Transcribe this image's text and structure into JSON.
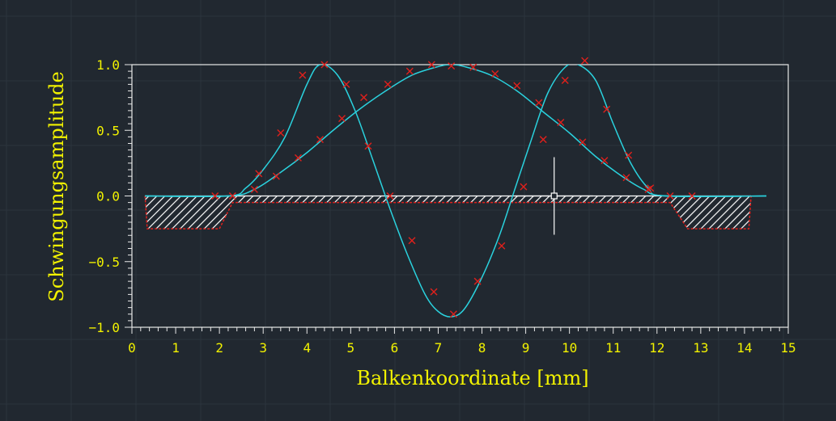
{
  "chart_data": {
    "type": "line",
    "xlabel": "Balkenkoordinate [mm]",
    "ylabel": "Schwingungsamplitude",
    "xlim": [
      0,
      15
    ],
    "ylim": [
      -1.0,
      1.0
    ],
    "x_ticks": [
      "0",
      "1",
      "2",
      "3",
      "4",
      "5",
      "6",
      "7",
      "8",
      "9",
      "10",
      "11",
      "12",
      "13",
      "14",
      "15"
    ],
    "y_ticks": [
      {
        "value": 1.0,
        "label": "1.0"
      },
      {
        "value": 0.5,
        "label": "0.5"
      },
      {
        "value": 0.0,
        "label": "0.0"
      },
      {
        "value": -0.5,
        "label": "−0.5"
      },
      {
        "value": -1.0,
        "label": "−1.0"
      }
    ],
    "curve_color": "#2ad2de",
    "marker_color": "#e0201c",
    "beam_color": "#e0201c",
    "grid": false,
    "beam_profile": [
      [
        0.3,
        0
      ],
      [
        0.35,
        -0.25
      ],
      [
        2.0,
        -0.25
      ],
      [
        2.3,
        -0.05
      ],
      [
        12.3,
        -0.05
      ],
      [
        12.7,
        -0.25
      ],
      [
        14.1,
        -0.25
      ],
      [
        14.15,
        0
      ]
    ],
    "beam_extent": [
      0.3,
      14.15
    ],
    "cursor": {
      "x": 9.65,
      "y": 0.0
    },
    "series": [
      {
        "kind": "mode_curve",
        "anchors": [
          [
            0.3,
            0
          ],
          [
            2.2,
            0
          ],
          [
            2.6,
            0.06
          ],
          [
            3.0,
            0.2
          ],
          [
            3.5,
            0.45
          ],
          [
            4.0,
            0.85
          ],
          [
            4.3,
            1.0
          ],
          [
            4.7,
            0.92
          ],
          [
            5.1,
            0.65
          ],
          [
            5.5,
            0.28
          ],
          [
            5.9,
            -0.1
          ],
          [
            6.3,
            -0.45
          ],
          [
            6.7,
            -0.75
          ],
          [
            7.0,
            -0.88
          ],
          [
            7.3,
            -0.92
          ],
          [
            7.6,
            -0.86
          ],
          [
            8.0,
            -0.62
          ],
          [
            8.4,
            -0.3
          ],
          [
            8.75,
            0.05
          ],
          [
            9.1,
            0.4
          ],
          [
            9.5,
            0.78
          ],
          [
            9.9,
            0.98
          ],
          [
            10.2,
            1.0
          ],
          [
            10.6,
            0.88
          ],
          [
            11.0,
            0.55
          ],
          [
            11.4,
            0.25
          ],
          [
            11.8,
            0.06
          ],
          [
            12.2,
            0.0
          ],
          [
            14.5,
            0.0
          ]
        ]
      },
      {
        "kind": "mode_curve",
        "anchors": [
          [
            0.3,
            0
          ],
          [
            2.2,
            0
          ],
          [
            2.8,
            0.05
          ],
          [
            3.4,
            0.18
          ],
          [
            4.0,
            0.33
          ],
          [
            4.6,
            0.5
          ],
          [
            5.2,
            0.66
          ],
          [
            5.8,
            0.8
          ],
          [
            6.4,
            0.92
          ],
          [
            7.0,
            0.985
          ],
          [
            7.3,
            1.0
          ],
          [
            7.6,
            0.985
          ],
          [
            8.2,
            0.92
          ],
          [
            8.8,
            0.8
          ],
          [
            9.4,
            0.64
          ],
          [
            10.0,
            0.48
          ],
          [
            10.6,
            0.3
          ],
          [
            11.2,
            0.15
          ],
          [
            11.7,
            0.05
          ],
          [
            12.2,
            0.0
          ],
          [
            14.5,
            0.0
          ]
        ]
      },
      {
        "kind": "measured",
        "points": [
          [
            1.9,
            0.0
          ],
          [
            2.3,
            0.0
          ],
          [
            2.8,
            0.05
          ],
          [
            2.9,
            0.17
          ],
          [
            3.3,
            0.15
          ],
          [
            3.4,
            0.48
          ],
          [
            3.8,
            0.29
          ],
          [
            3.9,
            0.92
          ],
          [
            4.3,
            0.43
          ],
          [
            4.4,
            1.0
          ],
          [
            4.8,
            0.59
          ],
          [
            4.9,
            0.85
          ],
          [
            5.3,
            0.75
          ],
          [
            5.4,
            0.38
          ],
          [
            5.85,
            0.85
          ],
          [
            5.9,
            0.0
          ],
          [
            6.35,
            0.95
          ],
          [
            6.4,
            -0.34
          ],
          [
            6.85,
            1.0
          ],
          [
            6.9,
            -0.73
          ],
          [
            7.3,
            0.99
          ],
          [
            7.35,
            -0.9
          ],
          [
            7.8,
            0.98
          ],
          [
            7.9,
            -0.65
          ],
          [
            8.3,
            0.93
          ],
          [
            8.45,
            -0.38
          ],
          [
            8.8,
            0.84
          ],
          [
            8.95,
            0.07
          ],
          [
            9.3,
            0.71
          ],
          [
            9.4,
            0.43
          ],
          [
            9.8,
            0.56
          ],
          [
            9.9,
            0.88
          ],
          [
            10.3,
            0.41
          ],
          [
            10.35,
            1.03
          ],
          [
            10.8,
            0.27
          ],
          [
            10.85,
            0.66
          ],
          [
            11.3,
            0.14
          ],
          [
            11.35,
            0.31
          ],
          [
            11.8,
            0.05
          ],
          [
            11.85,
            0.06
          ],
          [
            12.3,
            0.0
          ],
          [
            12.8,
            0.0
          ]
        ]
      }
    ]
  }
}
